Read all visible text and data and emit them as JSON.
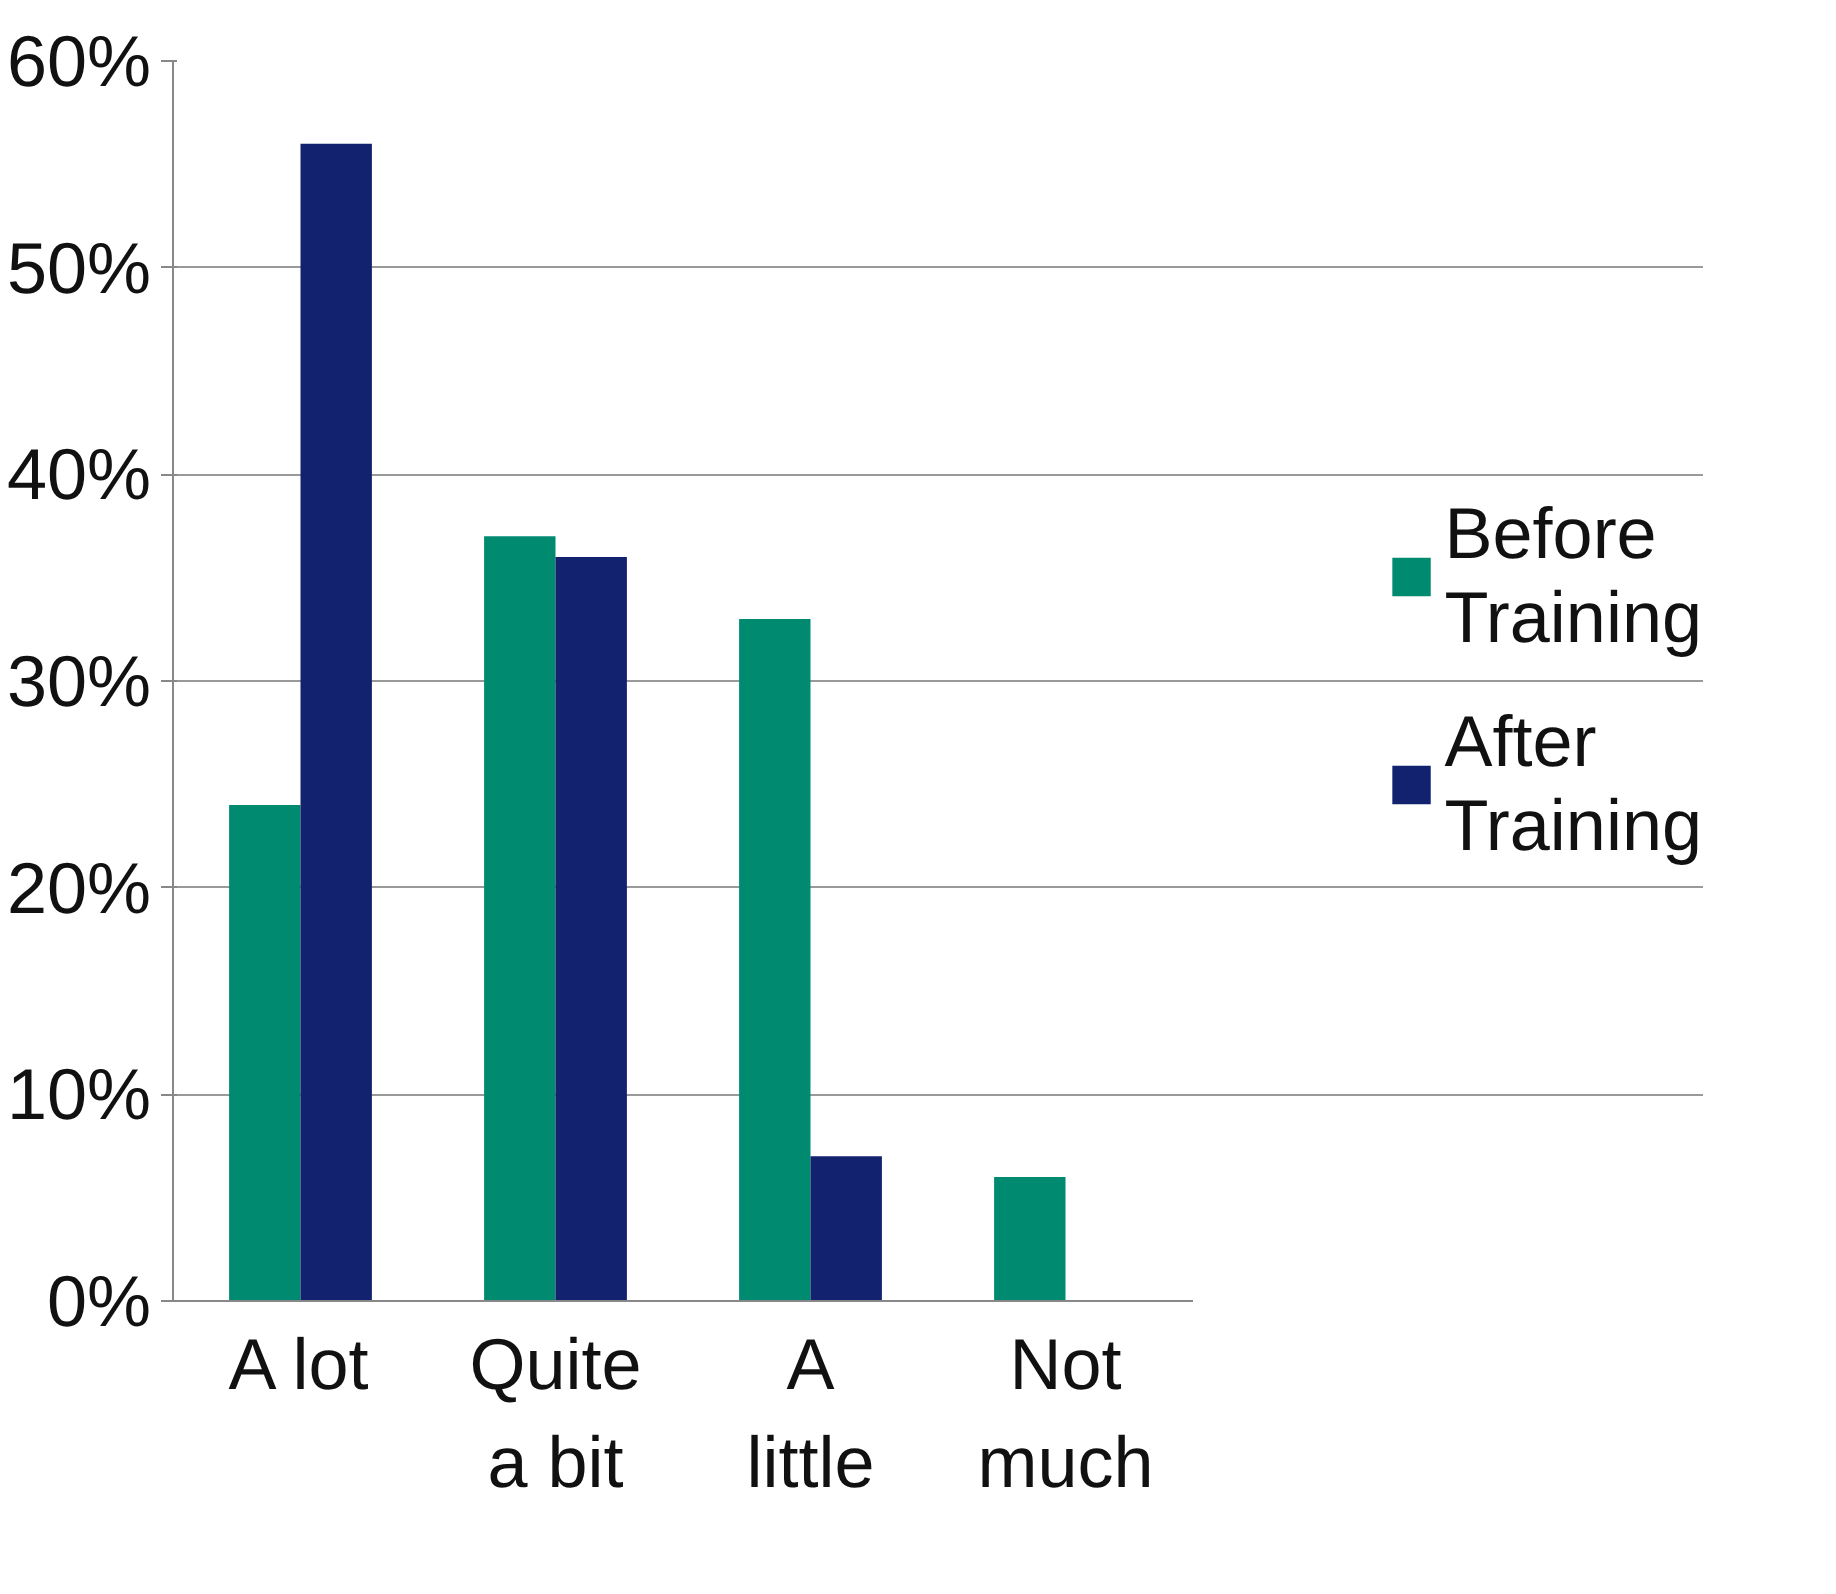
{
  "chart_data": {
    "type": "bar",
    "categories": [
      "A lot",
      "Quite a bit",
      "A little",
      "Not much"
    ],
    "series": [
      {
        "name": "Before Training",
        "color": "#008b70",
        "values": [
          24,
          37,
          33,
          6
        ]
      },
      {
        "name": "After Training",
        "color": "#13226f",
        "values": [
          56,
          36,
          7,
          0
        ]
      }
    ],
    "ylim": [
      0,
      60
    ],
    "yticks": [
      {
        "value": 0,
        "label": "0%"
      },
      {
        "value": 10,
        "label": "10%"
      },
      {
        "value": 20,
        "label": "20%"
      },
      {
        "value": 30,
        "label": "30%"
      },
      {
        "value": 40,
        "label": "40%"
      },
      {
        "value": 50,
        "label": "50%"
      },
      {
        "value": 60,
        "label": "60%"
      }
    ],
    "grid": "y",
    "legend": "right"
  }
}
